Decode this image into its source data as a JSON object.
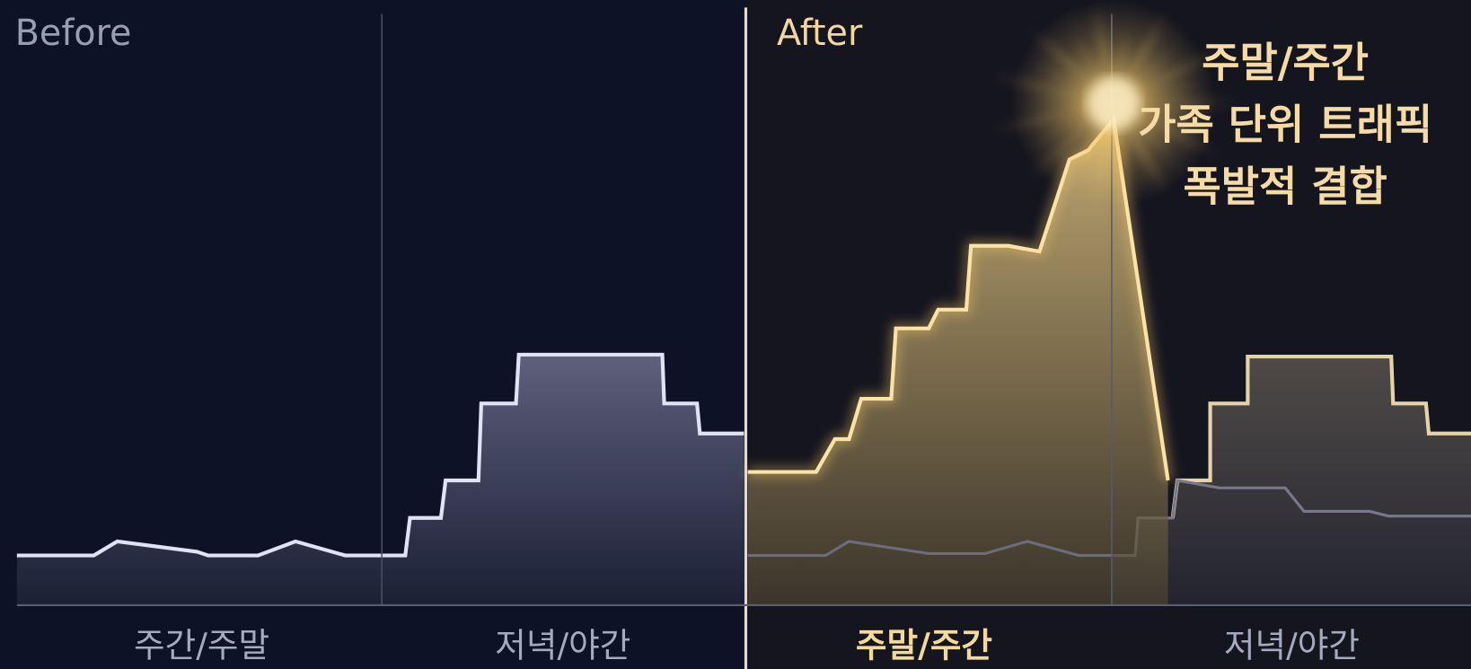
{
  "before": {
    "label": "Before",
    "categories": [
      "주간/주말",
      "저녁/야간"
    ]
  },
  "after": {
    "label": "After",
    "categories": [
      "주말/주간",
      "저녁/야간"
    ],
    "annotation": [
      "주말/주간",
      "가족 단위 트래픽",
      "폭발적 결합"
    ]
  }
}
